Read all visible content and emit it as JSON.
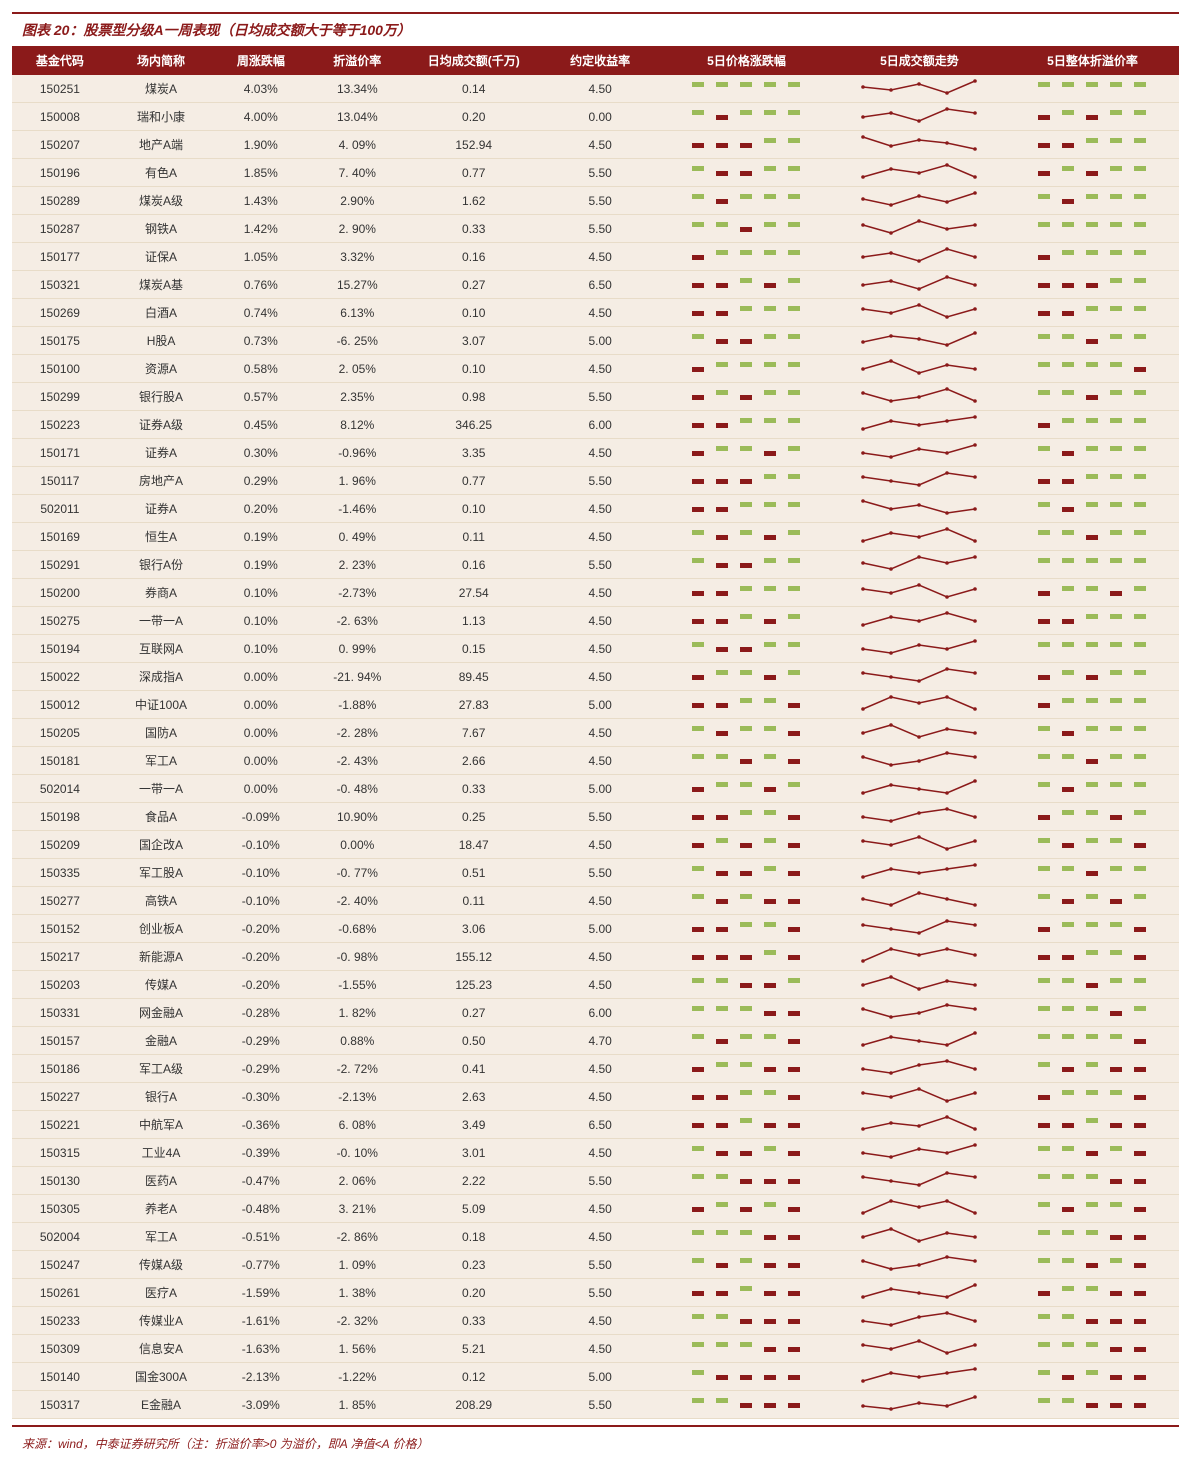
{
  "title": "图表 20：股票型分级A一周表现（日均成交额大于等于100万）",
  "source": "来源：wind，中泰证券研究所（注：折溢价率>0 为溢价，即A 净值<A 价格）",
  "columns": [
    "基金代码",
    "场内简称",
    "周涨跌幅",
    "折溢价率",
    "日均成交额(千万)",
    "约定收益率",
    "5日价格涨跌幅",
    "5日成交额走势",
    "5日整体折溢价率"
  ],
  "colors": {
    "header_bg": "#8b1a1a",
    "header_fg": "#ffffff",
    "row_bg": "#f5ede4",
    "pos_bar": "#9bbb59",
    "neg_bar": "#8b1a1a",
    "line": "#8b1a1a",
    "title": "#8b1a1a"
  },
  "spark_config": {
    "w": 120,
    "h": 18,
    "points": 5
  },
  "rows": [
    {
      "code": "150251",
      "name": "煤炭A",
      "chg": "4.03%",
      "prem": "13.34%",
      "vol": "0.14",
      "yield": "4.50",
      "s1": [
        1,
        1,
        1,
        1,
        1
      ],
      "s2": [
        8,
        7,
        9,
        6,
        10
      ],
      "s3": [
        1,
        1,
        1,
        1,
        1
      ]
    },
    {
      "code": "150008",
      "name": "瑞和小康",
      "chg": "4.00%",
      "prem": "13.04%",
      "vol": "0.20",
      "yield": "0.00",
      "s1": [
        1,
        -1,
        1,
        1,
        1
      ],
      "s2": [
        7,
        8,
        6,
        9,
        8
      ],
      "s3": [
        -1,
        1,
        -1,
        1,
        1
      ]
    },
    {
      "code": "150207",
      "name": "地产A端",
      "chg": "1.90%",
      "prem": "4. 09%",
      "vol": "152.94",
      "yield": "4.50",
      "s1": [
        -1,
        -1,
        -1,
        1,
        1
      ],
      "s2": [
        9,
        6,
        8,
        7,
        5
      ],
      "s3": [
        -1,
        -1,
        1,
        1,
        1
      ]
    },
    {
      "code": "150196",
      "name": "有色A",
      "chg": "1.85%",
      "prem": "7. 40%",
      "vol": "0.77",
      "yield": "5.50",
      "s1": [
        1,
        -1,
        -1,
        1,
        1
      ],
      "s2": [
        6,
        8,
        7,
        9,
        6
      ],
      "s3": [
        -1,
        1,
        -1,
        1,
        1
      ]
    },
    {
      "code": "150289",
      "name": "煤炭A级",
      "chg": "1.43%",
      "prem": "2.90%",
      "vol": "1.62",
      "yield": "5.50",
      "s1": [
        1,
        -1,
        1,
        1,
        1
      ],
      "s2": [
        7,
        5,
        8,
        6,
        9
      ],
      "s3": [
        1,
        -1,
        1,
        1,
        1
      ]
    },
    {
      "code": "150287",
      "name": "钢铁A",
      "chg": "1.42%",
      "prem": "2. 90%",
      "vol": "0.33",
      "yield": "5.50",
      "s1": [
        1,
        1,
        -1,
        1,
        1
      ],
      "s2": [
        8,
        6,
        9,
        7,
        8
      ],
      "s3": [
        1,
        1,
        1,
        1,
        1
      ]
    },
    {
      "code": "150177",
      "name": "证保A",
      "chg": "1.05%",
      "prem": "3.32%",
      "vol": "0.16",
      "yield": "4.50",
      "s1": [
        -1,
        1,
        1,
        1,
        1
      ],
      "s2": [
        6,
        7,
        5,
        8,
        6
      ],
      "s3": [
        -1,
        1,
        1,
        1,
        1
      ]
    },
    {
      "code": "150321",
      "name": "煤炭A基",
      "chg": "0.76%",
      "prem": "15.27%",
      "vol": "0.27",
      "yield": "6.50",
      "s1": [
        -1,
        -1,
        1,
        -1,
        1
      ],
      "s2": [
        7,
        8,
        6,
        9,
        7
      ],
      "s3": [
        -1,
        -1,
        -1,
        1,
        1
      ]
    },
    {
      "code": "150269",
      "name": "白酒A",
      "chg": "0.74%",
      "prem": "6.13%",
      "vol": "0.10",
      "yield": "4.50",
      "s1": [
        -1,
        -1,
        1,
        1,
        1
      ],
      "s2": [
        8,
        7,
        9,
        6,
        8
      ],
      "s3": [
        -1,
        -1,
        1,
        1,
        1
      ]
    },
    {
      "code": "150175",
      "name": "H股A",
      "chg": "0.73%",
      "prem": "-6. 25%",
      "vol": "3.07",
      "yield": "5.00",
      "s1": [
        1,
        -1,
        -1,
        1,
        1
      ],
      "s2": [
        6,
        8,
        7,
        5,
        9
      ],
      "s3": [
        1,
        1,
        -1,
        1,
        1
      ]
    },
    {
      "code": "150100",
      "name": "资源A",
      "chg": "0.58%",
      "prem": "2. 05%",
      "vol": "0.10",
      "yield": "4.50",
      "s1": [
        -1,
        1,
        1,
        1,
        1
      ],
      "s2": [
        7,
        9,
        6,
        8,
        7
      ],
      "s3": [
        1,
        1,
        1,
        1,
        -1
      ]
    },
    {
      "code": "150299",
      "name": "银行股A",
      "chg": "0.57%",
      "prem": "2.35%",
      "vol": "0.98",
      "yield": "5.50",
      "s1": [
        -1,
        1,
        -1,
        1,
        1
      ],
      "s2": [
        8,
        6,
        7,
        9,
        6
      ],
      "s3": [
        1,
        1,
        -1,
        1,
        1
      ]
    },
    {
      "code": "150223",
      "name": "证券A级",
      "chg": "0.45%",
      "prem": "8.12%",
      "vol": "346.25",
      "yield": "6.00",
      "s1": [
        -1,
        -1,
        1,
        1,
        1
      ],
      "s2": [
        6,
        8,
        7,
        8,
        9
      ],
      "s3": [
        -1,
        1,
        1,
        1,
        1
      ]
    },
    {
      "code": "150171",
      "name": "证券A",
      "chg": "0.30%",
      "prem": "-0.96%",
      "vol": "3.35",
      "yield": "4.50",
      "s1": [
        -1,
        1,
        1,
        -1,
        1
      ],
      "s2": [
        7,
        6,
        8,
        7,
        9
      ],
      "s3": [
        1,
        -1,
        1,
        1,
        1
      ]
    },
    {
      "code": "150117",
      "name": "房地产A",
      "chg": "0.29%",
      "prem": "1. 96%",
      "vol": "0.77",
      "yield": "5.50",
      "s1": [
        -1,
        -1,
        -1,
        1,
        1
      ],
      "s2": [
        8,
        7,
        6,
        9,
        8
      ],
      "s3": [
        -1,
        -1,
        1,
        1,
        1
      ]
    },
    {
      "code": "502011",
      "name": "证券A",
      "chg": "0.20%",
      "prem": "-1.46%",
      "vol": "0.10",
      "yield": "4.50",
      "s1": [
        -1,
        -1,
        1,
        1,
        1
      ],
      "s2": [
        9,
        7,
        8,
        6,
        7
      ],
      "s3": [
        1,
        -1,
        1,
        1,
        1
      ]
    },
    {
      "code": "150169",
      "name": "恒生A",
      "chg": "0.19%",
      "prem": "0. 49%",
      "vol": "0.11",
      "yield": "4.50",
      "s1": [
        1,
        -1,
        1,
        -1,
        1
      ],
      "s2": [
        6,
        8,
        7,
        9,
        6
      ],
      "s3": [
        1,
        1,
        -1,
        1,
        1
      ]
    },
    {
      "code": "150291",
      "name": "银行A份",
      "chg": "0.19%",
      "prem": "2. 23%",
      "vol": "0.16",
      "yield": "5.50",
      "s1": [
        1,
        -1,
        -1,
        1,
        1
      ],
      "s2": [
        7,
        6,
        8,
        7,
        8
      ],
      "s3": [
        1,
        1,
        1,
        1,
        1
      ]
    },
    {
      "code": "150200",
      "name": "券商A",
      "chg": "0.10%",
      "prem": "-2.73%",
      "vol": "27.54",
      "yield": "4.50",
      "s1": [
        -1,
        -1,
        1,
        1,
        1
      ],
      "s2": [
        8,
        7,
        9,
        6,
        8
      ],
      "s3": [
        -1,
        1,
        1,
        -1,
        1
      ]
    },
    {
      "code": "150275",
      "name": "一带一A",
      "chg": "0.10%",
      "prem": "-2. 63%",
      "vol": "1.13",
      "yield": "4.50",
      "s1": [
        -1,
        -1,
        1,
        -1,
        1
      ],
      "s2": [
        6,
        8,
        7,
        9,
        7
      ],
      "s3": [
        -1,
        -1,
        1,
        1,
        1
      ]
    },
    {
      "code": "150194",
      "name": "互联网A",
      "chg": "0.10%",
      "prem": "0. 99%",
      "vol": "0.15",
      "yield": "4.50",
      "s1": [
        1,
        -1,
        -1,
        1,
        1
      ],
      "s2": [
        7,
        6,
        8,
        7,
        9
      ],
      "s3": [
        1,
        1,
        1,
        1,
        1
      ]
    },
    {
      "code": "150022",
      "name": "深成指A",
      "chg": "0.00%",
      "prem": "-21. 94%",
      "vol": "89.45",
      "yield": "4.50",
      "s1": [
        -1,
        1,
        1,
        -1,
        1
      ],
      "s2": [
        8,
        7,
        6,
        9,
        8
      ],
      "s3": [
        -1,
        1,
        -1,
        1,
        1
      ]
    },
    {
      "code": "150012",
      "name": "中证100A",
      "chg": "0.00%",
      "prem": "-1.88%",
      "vol": "27.83",
      "yield": "5.00",
      "s1": [
        -1,
        -1,
        1,
        1,
        -1
      ],
      "s2": [
        6,
        8,
        7,
        8,
        6
      ],
      "s3": [
        -1,
        1,
        1,
        1,
        1
      ]
    },
    {
      "code": "150205",
      "name": "国防A",
      "chg": "0.00%",
      "prem": "-2. 28%",
      "vol": "7.67",
      "yield": "4.50",
      "s1": [
        1,
        -1,
        1,
        1,
        -1
      ],
      "s2": [
        7,
        9,
        6,
        8,
        7
      ],
      "s3": [
        1,
        -1,
        1,
        1,
        1
      ]
    },
    {
      "code": "150181",
      "name": "军工A",
      "chg": "0.00%",
      "prem": "-2. 43%",
      "vol": "2.66",
      "yield": "4.50",
      "s1": [
        1,
        1,
        -1,
        1,
        -1
      ],
      "s2": [
        8,
        6,
        7,
        9,
        8
      ],
      "s3": [
        1,
        1,
        -1,
        1,
        1
      ]
    },
    {
      "code": "502014",
      "name": "一带一A",
      "chg": "0.00%",
      "prem": "-0. 48%",
      "vol": "0.33",
      "yield": "5.00",
      "s1": [
        -1,
        1,
        1,
        -1,
        1
      ],
      "s2": [
        6,
        8,
        7,
        6,
        9
      ],
      "s3": [
        1,
        -1,
        1,
        1,
        1
      ]
    },
    {
      "code": "150198",
      "name": "食品A",
      "chg": "-0.09%",
      "prem": "10.90%",
      "vol": "0.25",
      "yield": "5.50",
      "s1": [
        -1,
        -1,
        1,
        1,
        -1
      ],
      "s2": [
        7,
        6,
        8,
        9,
        7
      ],
      "s3": [
        -1,
        1,
        1,
        -1,
        1
      ]
    },
    {
      "code": "150209",
      "name": "国企改A",
      "chg": "-0.10%",
      "prem": "0.00%",
      "vol": "18.47",
      "yield": "4.50",
      "s1": [
        -1,
        1,
        -1,
        1,
        -1
      ],
      "s2": [
        8,
        7,
        9,
        6,
        8
      ],
      "s3": [
        1,
        -1,
        1,
        1,
        -1
      ]
    },
    {
      "code": "150335",
      "name": "军工股A",
      "chg": "-0.10%",
      "prem": "-0. 77%",
      "vol": "0.51",
      "yield": "5.50",
      "s1": [
        1,
        -1,
        -1,
        1,
        -1
      ],
      "s2": [
        6,
        8,
        7,
        8,
        9
      ],
      "s3": [
        1,
        1,
        -1,
        1,
        1
      ]
    },
    {
      "code": "150277",
      "name": "高铁A",
      "chg": "-0.10%",
      "prem": "-2. 40%",
      "vol": "0.11",
      "yield": "4.50",
      "s1": [
        1,
        -1,
        1,
        -1,
        -1
      ],
      "s2": [
        7,
        6,
        8,
        7,
        6
      ],
      "s3": [
        1,
        -1,
        1,
        -1,
        1
      ]
    },
    {
      "code": "150152",
      "name": "创业板A",
      "chg": "-0.20%",
      "prem": "-0.68%",
      "vol": "3.06",
      "yield": "5.00",
      "s1": [
        -1,
        -1,
        1,
        1,
        -1
      ],
      "s2": [
        8,
        7,
        6,
        9,
        8
      ],
      "s3": [
        -1,
        1,
        1,
        1,
        -1
      ]
    },
    {
      "code": "150217",
      "name": "新能源A",
      "chg": "-0.20%",
      "prem": "-0. 98%",
      "vol": "155.12",
      "yield": "4.50",
      "s1": [
        -1,
        -1,
        -1,
        1,
        -1
      ],
      "s2": [
        6,
        8,
        7,
        8,
        7
      ],
      "s3": [
        -1,
        -1,
        1,
        1,
        -1
      ]
    },
    {
      "code": "150203",
      "name": "传媒A",
      "chg": "-0.20%",
      "prem": "-1.55%",
      "vol": "125.23",
      "yield": "4.50",
      "s1": [
        1,
        1,
        -1,
        -1,
        1
      ],
      "s2": [
        7,
        9,
        6,
        8,
        7
      ],
      "s3": [
        1,
        1,
        -1,
        1,
        1
      ]
    },
    {
      "code": "150331",
      "name": "网金融A",
      "chg": "-0.28%",
      "prem": "1. 82%",
      "vol": "0.27",
      "yield": "6.00",
      "s1": [
        1,
        1,
        1,
        -1,
        -1
      ],
      "s2": [
        8,
        6,
        7,
        9,
        8
      ],
      "s3": [
        1,
        1,
        1,
        -1,
        1
      ]
    },
    {
      "code": "150157",
      "name": "金融A",
      "chg": "-0.29%",
      "prem": "0.88%",
      "vol": "0.50",
      "yield": "4.70",
      "s1": [
        1,
        -1,
        1,
        1,
        -1
      ],
      "s2": [
        6,
        8,
        7,
        6,
        9
      ],
      "s3": [
        1,
        1,
        1,
        1,
        -1
      ]
    },
    {
      "code": "150186",
      "name": "军工A级",
      "chg": "-0.29%",
      "prem": "-2. 72%",
      "vol": "0.41",
      "yield": "4.50",
      "s1": [
        -1,
        1,
        1,
        -1,
        -1
      ],
      "s2": [
        7,
        6,
        8,
        9,
        7
      ],
      "s3": [
        1,
        -1,
        1,
        -1,
        -1
      ]
    },
    {
      "code": "150227",
      "name": "银行A",
      "chg": "-0.30%",
      "prem": "-2.13%",
      "vol": "2.63",
      "yield": "4.50",
      "s1": [
        -1,
        -1,
        1,
        1,
        -1
      ],
      "s2": [
        8,
        7,
        9,
        6,
        8
      ],
      "s3": [
        -1,
        1,
        1,
        1,
        -1
      ]
    },
    {
      "code": "150221",
      "name": "中航军A",
      "chg": "-0.36%",
      "prem": "6. 08%",
      "vol": "3.49",
      "yield": "6.50",
      "s1": [
        -1,
        -1,
        1,
        -1,
        -1
      ],
      "s2": [
        6,
        8,
        7,
        10,
        6
      ],
      "s3": [
        -1,
        -1,
        1,
        -1,
        -1
      ]
    },
    {
      "code": "150315",
      "name": "工业4A",
      "chg": "-0.39%",
      "prem": "-0. 10%",
      "vol": "3.01",
      "yield": "4.50",
      "s1": [
        1,
        -1,
        -1,
        1,
        -1
      ],
      "s2": [
        7,
        6,
        8,
        7,
        9
      ],
      "s3": [
        1,
        1,
        -1,
        1,
        -1
      ]
    },
    {
      "code": "150130",
      "name": "医药A",
      "chg": "-0.47%",
      "prem": "2. 06%",
      "vol": "2.22",
      "yield": "5.50",
      "s1": [
        1,
        1,
        -1,
        -1,
        -1
      ],
      "s2": [
        8,
        7,
        6,
        9,
        8
      ],
      "s3": [
        1,
        1,
        1,
        -1,
        -1
      ]
    },
    {
      "code": "150305",
      "name": "养老A",
      "chg": "-0.48%",
      "prem": "3. 21%",
      "vol": "5.09",
      "yield": "4.50",
      "s1": [
        -1,
        1,
        -1,
        1,
        -1
      ],
      "s2": [
        6,
        8,
        7,
        8,
        6
      ],
      "s3": [
        1,
        -1,
        1,
        1,
        -1
      ]
    },
    {
      "code": "502004",
      "name": "军工A",
      "chg": "-0.51%",
      "prem": "-2. 86%",
      "vol": "0.18",
      "yield": "4.50",
      "s1": [
        1,
        1,
        1,
        -1,
        -1
      ],
      "s2": [
        7,
        9,
        6,
        8,
        7
      ],
      "s3": [
        1,
        1,
        1,
        -1,
        -1
      ]
    },
    {
      "code": "150247",
      "name": "传媒A级",
      "chg": "-0.77%",
      "prem": "1. 09%",
      "vol": "0.23",
      "yield": "5.50",
      "s1": [
        1,
        -1,
        1,
        -1,
        -1
      ],
      "s2": [
        8,
        6,
        7,
        9,
        8
      ],
      "s3": [
        1,
        1,
        -1,
        1,
        -1
      ]
    },
    {
      "code": "150261",
      "name": "医疗A",
      "chg": "-1.59%",
      "prem": "1. 38%",
      "vol": "0.20",
      "yield": "5.50",
      "s1": [
        -1,
        -1,
        1,
        -1,
        -1
      ],
      "s2": [
        6,
        8,
        7,
        6,
        9
      ],
      "s3": [
        -1,
        1,
        1,
        -1,
        -1
      ]
    },
    {
      "code": "150233",
      "name": "传媒业A",
      "chg": "-1.61%",
      "prem": "-2. 32%",
      "vol": "0.33",
      "yield": "4.50",
      "s1": [
        1,
        1,
        -1,
        -1,
        -1
      ],
      "s2": [
        7,
        6,
        8,
        9,
        7
      ],
      "s3": [
        1,
        1,
        -1,
        -1,
        -1
      ]
    },
    {
      "code": "150309",
      "name": "信息安A",
      "chg": "-1.63%",
      "prem": "1. 56%",
      "vol": "5.21",
      "yield": "4.50",
      "s1": [
        1,
        1,
        1,
        -1,
        -1
      ],
      "s2": [
        8,
        7,
        9,
        6,
        8
      ],
      "s3": [
        1,
        1,
        1,
        -1,
        -1
      ]
    },
    {
      "code": "150140",
      "name": "国金300A",
      "chg": "-2.13%",
      "prem": "-1.22%",
      "vol": "0.12",
      "yield": "5.00",
      "s1": [
        1,
        -1,
        -1,
        -1,
        -1
      ],
      "s2": [
        6,
        8,
        7,
        8,
        9
      ],
      "s3": [
        1,
        -1,
        1,
        -1,
        -1
      ]
    },
    {
      "code": "150317",
      "name": "E金融A",
      "chg": "-3.09%",
      "prem": "1. 85%",
      "vol": "208.29",
      "yield": "5.50",
      "s1": [
        1,
        1,
        -1,
        -1,
        -1
      ],
      "s2": [
        7,
        6,
        8,
        7,
        10
      ],
      "s3": [
        1,
        1,
        -1,
        -1,
        -1
      ]
    }
  ]
}
